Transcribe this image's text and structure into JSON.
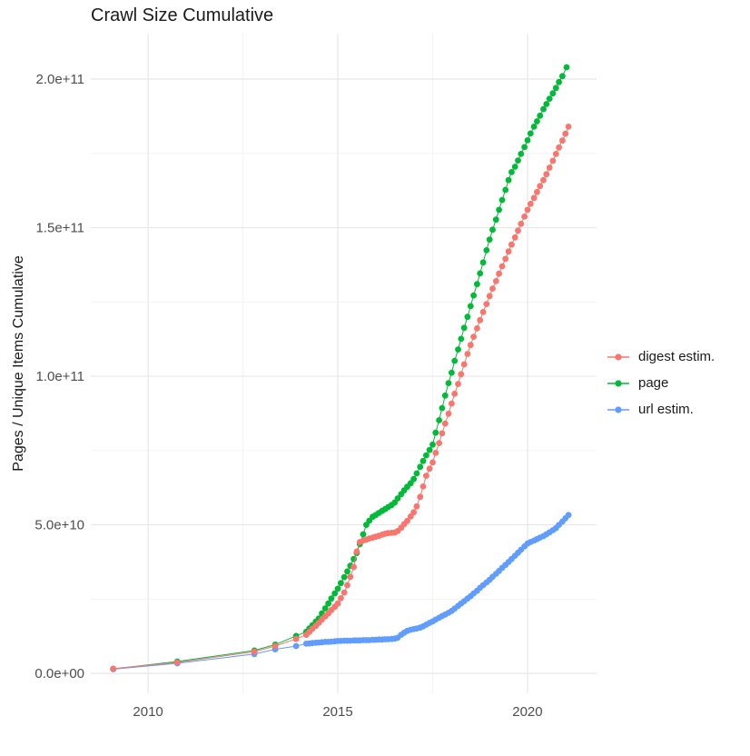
{
  "title": "Crawl Size Cumulative",
  "axes": {
    "y_title": "Pages / Unique Items Cumulative",
    "y_ticks": [
      {
        "label": "0.0e+00",
        "value": 0
      },
      {
        "label": "5.0e+10",
        "value": 50
      },
      {
        "label": "1.0e+11",
        "value": 100
      },
      {
        "label": "1.5e+11",
        "value": 150
      },
      {
        "label": "2.0e+11",
        "value": 200
      }
    ],
    "x_ticks": [
      {
        "label": "2010",
        "value": 2010
      },
      {
        "label": "2015",
        "value": 2015
      },
      {
        "label": "2020",
        "value": 2020
      }
    ],
    "y_grid_minor": [
      25,
      75,
      125,
      175
    ],
    "x_grid_minor": [
      2012.5,
      2017.5
    ]
  },
  "legend": {
    "items": [
      {
        "label": "digest estim.",
        "color": "#F8766D"
      },
      {
        "label": "page",
        "color": "#00BA38"
      },
      {
        "label": "url estim.",
        "color": "#619CFF"
      }
    ]
  },
  "chart_data": {
    "type": "scatter",
    "title": "Crawl Size Cumulative",
    "xlabel": "",
    "ylabel": "Pages / Unique Items Cumulative",
    "x_unit": "year",
    "y_unit": "items cumulative, in billions (1e9)",
    "x_range": [
      2008.49,
      2021.82
    ],
    "y_range_e9": [
      -6.7,
      215.3
    ],
    "grid": true,
    "legend_position": "right",
    "marker": "point-with-line",
    "series": [
      {
        "name": "page",
        "color": "#00BA38",
        "points_year_value_e9": [
          [
            2009.08,
            1.5
          ],
          [
            2010.77,
            4.0
          ],
          [
            2012.8,
            7.7
          ],
          [
            2013.35,
            9.7
          ],
          [
            2013.9,
            12.6
          ],
          [
            2014.17,
            14.0
          ],
          [
            2014.25,
            15.1
          ],
          [
            2014.33,
            16.2
          ],
          [
            2014.42,
            17.4
          ],
          [
            2014.5,
            18.5
          ],
          [
            2014.58,
            20.2
          ],
          [
            2014.67,
            21.9
          ],
          [
            2014.75,
            23.5
          ],
          [
            2014.83,
            25.2
          ],
          [
            2014.92,
            26.9
          ],
          [
            2015.0,
            28.5
          ],
          [
            2015.08,
            30.4
          ],
          [
            2015.17,
            32.4
          ],
          [
            2015.25,
            34.3
          ],
          [
            2015.33,
            36.2
          ],
          [
            2015.42,
            38.5
          ],
          [
            2015.5,
            40.5
          ],
          [
            2015.58,
            43.5
          ],
          [
            2015.67,
            46.8
          ],
          [
            2015.75,
            50.0
          ],
          [
            2015.83,
            51.4
          ],
          [
            2015.92,
            52.7
          ],
          [
            2016.0,
            53.3
          ],
          [
            2016.08,
            54.0
          ],
          [
            2016.17,
            54.7
          ],
          [
            2016.25,
            55.3
          ],
          [
            2016.33,
            56.0
          ],
          [
            2016.42,
            56.7
          ],
          [
            2016.5,
            57.5
          ],
          [
            2016.58,
            58.9
          ],
          [
            2016.67,
            60.3
          ],
          [
            2016.75,
            61.6
          ],
          [
            2016.83,
            62.8
          ],
          [
            2016.92,
            64.0
          ],
          [
            2017.0,
            65.4
          ],
          [
            2017.08,
            67.3
          ],
          [
            2017.17,
            69.5
          ],
          [
            2017.25,
            71.5
          ],
          [
            2017.33,
            73.4
          ],
          [
            2017.42,
            75.2
          ],
          [
            2017.5,
            77.0
          ],
          [
            2017.58,
            81.0
          ],
          [
            2017.67,
            85.2
          ],
          [
            2017.75,
            89.3
          ],
          [
            2017.83,
            93.5
          ],
          [
            2017.92,
            97.7
          ],
          [
            2018.0,
            101.2
          ],
          [
            2018.08,
            105.2
          ],
          [
            2018.17,
            109.0
          ],
          [
            2018.25,
            112.6
          ],
          [
            2018.33,
            116.3
          ],
          [
            2018.42,
            120.0
          ],
          [
            2018.5,
            123.6
          ],
          [
            2018.58,
            127.2
          ],
          [
            2018.67,
            131.0
          ],
          [
            2018.75,
            134.6
          ],
          [
            2018.83,
            138.3
          ],
          [
            2018.92,
            142.4
          ],
          [
            2019.0,
            146.0
          ],
          [
            2019.08,
            149.3
          ],
          [
            2019.17,
            152.7
          ],
          [
            2019.25,
            156.0
          ],
          [
            2019.33,
            159.3
          ],
          [
            2019.42,
            162.7
          ],
          [
            2019.5,
            166.0
          ],
          [
            2019.58,
            168.7
          ],
          [
            2019.67,
            170.5
          ],
          [
            2019.75,
            172.6
          ],
          [
            2019.83,
            174.8
          ],
          [
            2019.92,
            177.1
          ],
          [
            2020.0,
            179.4
          ],
          [
            2020.08,
            181.7
          ],
          [
            2020.17,
            184.0
          ],
          [
            2020.25,
            185.8
          ],
          [
            2020.33,
            187.7
          ],
          [
            2020.42,
            189.9
          ],
          [
            2020.5,
            191.6
          ],
          [
            2020.58,
            193.4
          ],
          [
            2020.67,
            195.2
          ],
          [
            2020.75,
            197.0
          ],
          [
            2020.83,
            199.0
          ],
          [
            2020.92,
            201.0
          ],
          [
            2021.03,
            204.0
          ]
        ]
      },
      {
        "name": "url estim.",
        "color": "#619CFF",
        "points_year_value_e9": [
          [
            2009.08,
            1.4
          ],
          [
            2010.77,
            3.4
          ],
          [
            2012.8,
            6.5
          ],
          [
            2013.35,
            8.1
          ],
          [
            2013.9,
            9.2
          ],
          [
            2014.17,
            10.0
          ],
          [
            2014.25,
            10.1
          ],
          [
            2014.33,
            10.2
          ],
          [
            2014.42,
            10.3
          ],
          [
            2014.5,
            10.4
          ],
          [
            2014.58,
            10.5
          ],
          [
            2014.67,
            10.6
          ],
          [
            2014.75,
            10.6
          ],
          [
            2014.83,
            10.7
          ],
          [
            2014.92,
            10.8
          ],
          [
            2015.0,
            10.9
          ],
          [
            2015.08,
            10.9
          ],
          [
            2015.17,
            11.0
          ],
          [
            2015.25,
            11.0
          ],
          [
            2015.33,
            11.0
          ],
          [
            2015.42,
            11.1
          ],
          [
            2015.5,
            11.1
          ],
          [
            2015.58,
            11.1
          ],
          [
            2015.67,
            11.2
          ],
          [
            2015.75,
            11.2
          ],
          [
            2015.83,
            11.2
          ],
          [
            2015.92,
            11.3
          ],
          [
            2016.0,
            11.3
          ],
          [
            2016.08,
            11.4
          ],
          [
            2016.17,
            11.4
          ],
          [
            2016.25,
            11.5
          ],
          [
            2016.33,
            11.5
          ],
          [
            2016.42,
            11.6
          ],
          [
            2016.5,
            11.7
          ],
          [
            2016.58,
            12.0
          ],
          [
            2016.67,
            13.0
          ],
          [
            2016.75,
            13.7
          ],
          [
            2016.83,
            14.3
          ],
          [
            2016.92,
            14.7
          ],
          [
            2017.0,
            14.9
          ],
          [
            2017.08,
            15.1
          ],
          [
            2017.17,
            15.4
          ],
          [
            2017.25,
            15.8
          ],
          [
            2017.33,
            16.4
          ],
          [
            2017.42,
            17.0
          ],
          [
            2017.5,
            17.5
          ],
          [
            2017.58,
            18.1
          ],
          [
            2017.67,
            18.7
          ],
          [
            2017.75,
            19.3
          ],
          [
            2017.83,
            19.8
          ],
          [
            2017.92,
            20.4
          ],
          [
            2018.0,
            21.0
          ],
          [
            2018.08,
            21.8
          ],
          [
            2018.17,
            22.7
          ],
          [
            2018.25,
            23.5
          ],
          [
            2018.33,
            24.3
          ],
          [
            2018.42,
            25.2
          ],
          [
            2018.5,
            26.0
          ],
          [
            2018.58,
            26.9
          ],
          [
            2018.67,
            27.8
          ],
          [
            2018.75,
            28.8
          ],
          [
            2018.83,
            29.7
          ],
          [
            2018.92,
            30.6
          ],
          [
            2019.0,
            31.5
          ],
          [
            2019.08,
            32.5
          ],
          [
            2019.17,
            33.5
          ],
          [
            2019.25,
            34.5
          ],
          [
            2019.33,
            35.5
          ],
          [
            2019.42,
            36.5
          ],
          [
            2019.5,
            37.5
          ],
          [
            2019.58,
            38.5
          ],
          [
            2019.67,
            39.6
          ],
          [
            2019.75,
            40.6
          ],
          [
            2019.83,
            41.6
          ],
          [
            2019.92,
            42.7
          ],
          [
            2020.0,
            43.7
          ],
          [
            2020.08,
            44.2
          ],
          [
            2020.17,
            44.7
          ],
          [
            2020.25,
            45.2
          ],
          [
            2020.33,
            45.7
          ],
          [
            2020.42,
            46.2
          ],
          [
            2020.5,
            46.8
          ],
          [
            2020.58,
            47.5
          ],
          [
            2020.67,
            48.2
          ],
          [
            2020.75,
            48.9
          ],
          [
            2020.83,
            50.0
          ],
          [
            2020.92,
            51.1
          ],
          [
            2021.0,
            52.2
          ],
          [
            2021.08,
            53.3
          ]
        ]
      },
      {
        "name": "digest estim.",
        "color": "#F8766D",
        "points_year_value_e9": [
          [
            2009.08,
            1.6
          ],
          [
            2010.77,
            3.7
          ],
          [
            2012.8,
            7.3
          ],
          [
            2013.35,
            9.2
          ],
          [
            2013.9,
            11.6
          ],
          [
            2014.17,
            13.0
          ],
          [
            2014.25,
            14.0
          ],
          [
            2014.33,
            15.0
          ],
          [
            2014.42,
            16.0
          ],
          [
            2014.5,
            17.0
          ],
          [
            2014.58,
            18.1
          ],
          [
            2014.67,
            19.2
          ],
          [
            2014.75,
            20.2
          ],
          [
            2014.83,
            21.3
          ],
          [
            2014.92,
            22.4
          ],
          [
            2015.0,
            23.5
          ],
          [
            2015.08,
            25.3
          ],
          [
            2015.17,
            27.2
          ],
          [
            2015.25,
            29.7
          ],
          [
            2015.33,
            32.5
          ],
          [
            2015.42,
            35.8
          ],
          [
            2015.5,
            41.0
          ],
          [
            2015.58,
            44.2
          ],
          [
            2015.67,
            44.7
          ],
          [
            2015.75,
            45.0
          ],
          [
            2015.83,
            45.4
          ],
          [
            2015.92,
            45.7
          ],
          [
            2016.0,
            46.0
          ],
          [
            2016.08,
            46.3
          ],
          [
            2016.17,
            46.7
          ],
          [
            2016.25,
            47.0
          ],
          [
            2016.33,
            47.2
          ],
          [
            2016.42,
            47.3
          ],
          [
            2016.5,
            47.4
          ],
          [
            2016.58,
            47.9
          ],
          [
            2016.67,
            49.0
          ],
          [
            2016.75,
            50.2
          ],
          [
            2016.83,
            51.3
          ],
          [
            2016.92,
            52.8
          ],
          [
            2017.0,
            54.2
          ],
          [
            2017.08,
            56.2
          ],
          [
            2017.17,
            59.4
          ],
          [
            2017.25,
            62.9
          ],
          [
            2017.33,
            66.5
          ],
          [
            2017.42,
            68.9
          ],
          [
            2017.5,
            71.0
          ],
          [
            2017.58,
            74.2
          ],
          [
            2017.67,
            77.5
          ],
          [
            2017.75,
            80.8
          ],
          [
            2017.83,
            84.1
          ],
          [
            2017.92,
            87.4
          ],
          [
            2018.0,
            90.8
          ],
          [
            2018.08,
            94.1
          ],
          [
            2018.17,
            97.4
          ],
          [
            2018.25,
            100.7
          ],
          [
            2018.33,
            104.0
          ],
          [
            2018.42,
            107.5
          ],
          [
            2018.5,
            110.5
          ],
          [
            2018.58,
            113.3
          ],
          [
            2018.67,
            116.1
          ],
          [
            2018.75,
            118.9
          ],
          [
            2018.83,
            121.6
          ],
          [
            2018.92,
            124.3
          ],
          [
            2019.0,
            127.0
          ],
          [
            2019.08,
            129.5
          ],
          [
            2019.17,
            132.0
          ],
          [
            2019.25,
            134.5
          ],
          [
            2019.33,
            137.0
          ],
          [
            2019.42,
            139.5
          ],
          [
            2019.5,
            142.0
          ],
          [
            2019.58,
            144.3
          ],
          [
            2019.67,
            146.7
          ],
          [
            2019.75,
            149.0
          ],
          [
            2019.83,
            151.3
          ],
          [
            2019.92,
            153.7
          ],
          [
            2020.0,
            156.0
          ],
          [
            2020.08,
            158.0
          ],
          [
            2020.17,
            160.0
          ],
          [
            2020.25,
            162.0
          ],
          [
            2020.33,
            164.0
          ],
          [
            2020.42,
            166.0
          ],
          [
            2020.5,
            168.0
          ],
          [
            2020.58,
            170.2
          ],
          [
            2020.67,
            172.5
          ],
          [
            2020.75,
            174.8
          ],
          [
            2020.83,
            177.0
          ],
          [
            2020.92,
            179.3
          ],
          [
            2021.0,
            181.6
          ],
          [
            2021.08,
            184.0
          ]
        ]
      }
    ]
  }
}
